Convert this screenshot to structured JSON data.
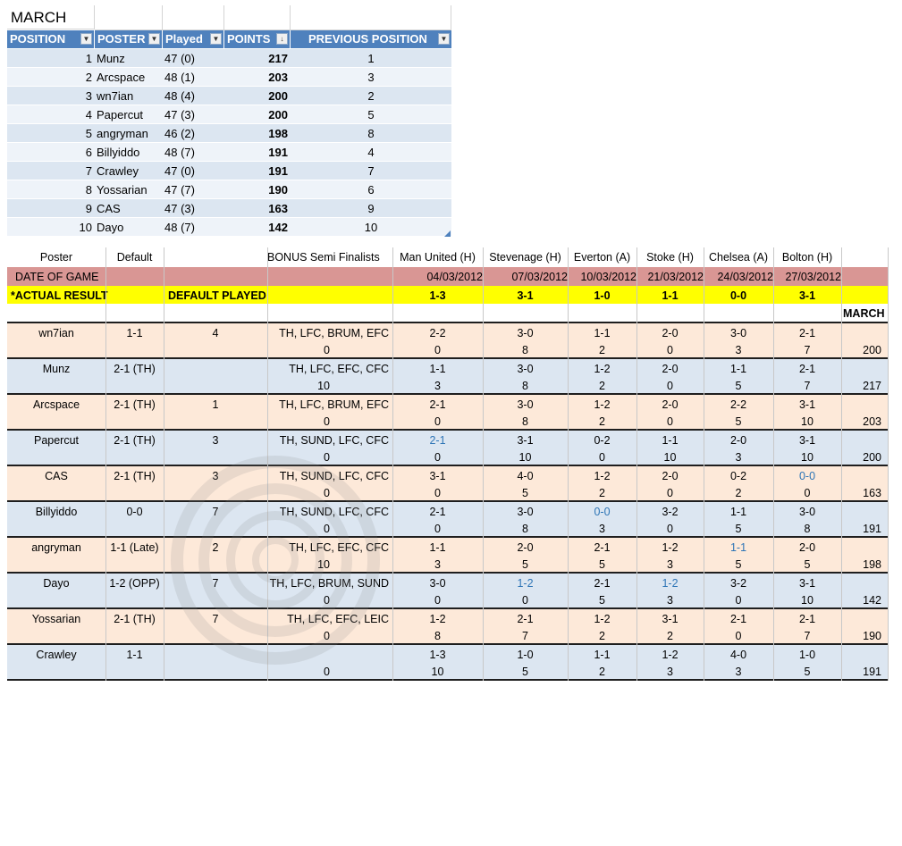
{
  "top_table": {
    "title": "MARCH",
    "headers": [
      "POSITION",
      "POSTER",
      "Played",
      "POINTS",
      "PREVIOUS POSITION"
    ],
    "rows": [
      {
        "position": "1",
        "poster": "Munz",
        "played": "47 (0)",
        "points": "217",
        "previous": "1"
      },
      {
        "position": "2",
        "poster": "Arcspace",
        "played": "48 (1)",
        "points": "203",
        "previous": "3"
      },
      {
        "position": "3",
        "poster": "wn7ian",
        "played": "48 (4)",
        "points": "200",
        "previous": "2"
      },
      {
        "position": "4",
        "poster": "Papercut",
        "played": "47 (3)",
        "points": "200",
        "previous": "5"
      },
      {
        "position": "5",
        "poster": "angryman",
        "played": "46 (2)",
        "points": "198",
        "previous": "8"
      },
      {
        "position": "6",
        "poster": "Billyiddo",
        "played": "48 (7)",
        "points": "191",
        "previous": "4"
      },
      {
        "position": "7",
        "poster": "Crawley",
        "played": "47 (0)",
        "points": "191",
        "previous": "7"
      },
      {
        "position": "8",
        "poster": "Yossarian",
        "played": "47 (7)",
        "points": "190",
        "previous": "6"
      },
      {
        "position": "9",
        "poster": "CAS",
        "played": "47 (3)",
        "points": "163",
        "previous": "9"
      },
      {
        "position": "10",
        "poster": "Dayo",
        "played": "48 (7)",
        "points": "142",
        "previous": "10"
      }
    ]
  },
  "bottom_table": {
    "headers": {
      "poster": "Poster",
      "default": "Default",
      "bonus": "BONUS Semi Finalists",
      "month": "MARCH"
    },
    "fixtures": [
      {
        "team": "Man United (H)",
        "date": "04/03/2012",
        "result": "1-3"
      },
      {
        "team": "Stevenage (H)",
        "date": "07/03/2012",
        "result": "3-1"
      },
      {
        "team": "Everton (A)",
        "date": "10/03/2012",
        "result": "1-0"
      },
      {
        "team": "Stoke (H)",
        "date": "21/03/2012",
        "result": "1-1"
      },
      {
        "team": "Chelsea (A)",
        "date": "24/03/2012",
        "result": "0-0"
      },
      {
        "team": "Bolton (H)",
        "date": "27/03/2012",
        "result": "3-1"
      }
    ],
    "date_label": "DATE OF GAME",
    "result_label": "*ACTUAL RESULT",
    "default_played_label": "DEFAULT PLAYED",
    "posters": [
      {
        "name": "wn7ian",
        "default": "1-1",
        "played": "4",
        "bonus": "TH, LFC, BRUM, EFC",
        "bonus_pts": "0",
        "preds": [
          "2-2",
          "3-0",
          "1-1",
          "2-0",
          "3-0",
          "2-1"
        ],
        "pts": [
          "0",
          "8",
          "2",
          "0",
          "3",
          "7"
        ],
        "total": "200",
        "blue": []
      },
      {
        "name": "Munz",
        "default": "2-1 (TH)",
        "played": "",
        "bonus": "TH, LFC, EFC, CFC",
        "bonus_pts": "10",
        "preds": [
          "1-1",
          "3-0",
          "1-2",
          "2-0",
          "1-1",
          "2-1"
        ],
        "pts": [
          "3",
          "8",
          "2",
          "0",
          "5",
          "7"
        ],
        "total": "217",
        "blue": []
      },
      {
        "name": "Arcspace",
        "default": "2-1 (TH)",
        "played": "1",
        "bonus": "TH, LFC, BRUM, EFC",
        "bonus_pts": "0",
        "preds": [
          "2-1",
          "3-0",
          "1-2",
          "2-0",
          "2-2",
          "3-1"
        ],
        "pts": [
          "0",
          "8",
          "2",
          "0",
          "5",
          "10"
        ],
        "total": "203",
        "blue": []
      },
      {
        "name": "Papercut",
        "default": "2-1 (TH)",
        "played": "3",
        "bonus": "TH, SUND, LFC, CFC",
        "bonus_pts": "0",
        "preds": [
          "2-1",
          "3-1",
          "0-2",
          "1-1",
          "2-0",
          "3-1"
        ],
        "pts": [
          "0",
          "10",
          "0",
          "10",
          "3",
          "10"
        ],
        "total": "200",
        "blue": [
          0
        ]
      },
      {
        "name": "CAS",
        "default": "2-1 (TH)",
        "played": "3",
        "bonus": "TH, SUND, LFC, CFC",
        "bonus_pts": "0",
        "preds": [
          "3-1",
          "4-0",
          "1-2",
          "2-0",
          "0-2",
          "0-0"
        ],
        "pts": [
          "0",
          "5",
          "2",
          "0",
          "2",
          "0"
        ],
        "total": "163",
        "blue": [
          5
        ]
      },
      {
        "name": "Billyiddo",
        "default": "0-0",
        "played": "7",
        "bonus": "TH, SUND, LFC, CFC",
        "bonus_pts": "0",
        "preds": [
          "2-1",
          "3-0",
          "0-0",
          "3-2",
          "1-1",
          "3-0"
        ],
        "pts": [
          "0",
          "8",
          "3",
          "0",
          "5",
          "8"
        ],
        "total": "191",
        "blue": [
          2
        ]
      },
      {
        "name": "angryman",
        "default": "1-1 (Late)",
        "played": "2",
        "bonus": "TH, LFC, EFC, CFC",
        "bonus_pts": "10",
        "preds": [
          "1-1",
          "2-0",
          "2-1",
          "1-2",
          "1-1",
          "2-0"
        ],
        "pts": [
          "3",
          "5",
          "5",
          "3",
          "5",
          "5"
        ],
        "total": "198",
        "blue": [
          4
        ]
      },
      {
        "name": "Dayo",
        "default": "1-2 (OPP)",
        "played": "7",
        "bonus": "TH, LFC, BRUM, SUND",
        "bonus_pts": "0",
        "preds": [
          "3-0",
          "1-2",
          "2-1",
          "1-2",
          "3-2",
          "3-1"
        ],
        "pts": [
          "0",
          "0",
          "5",
          "3",
          "0",
          "10"
        ],
        "total": "142",
        "blue": [
          1,
          3
        ]
      },
      {
        "name": "Yossarian",
        "default": "2-1 (TH)",
        "played": "7",
        "bonus": "TH, LFC, EFC, LEIC",
        "bonus_pts": "0",
        "preds": [
          "1-2",
          "2-1",
          "1-2",
          "3-1",
          "2-1",
          "2-1"
        ],
        "pts": [
          "8",
          "7",
          "2",
          "2",
          "0",
          "7"
        ],
        "total": "190",
        "blue": []
      },
      {
        "name": "Crawley",
        "default": "1-1",
        "played": "",
        "bonus": "",
        "bonus_pts": "0",
        "preds": [
          "1-3",
          "1-0",
          "1-1",
          "1-2",
          "4-0",
          "1-0"
        ],
        "pts": [
          "10",
          "5",
          "2",
          "3",
          "3",
          "5"
        ],
        "total": "191",
        "blue": []
      }
    ]
  },
  "colors": {
    "header_blue": "#4f81bd",
    "row_light_blue": "#dce6f1",
    "date_row": "#d99694",
    "result_row": "#ffff00",
    "peach": "#fde9d9",
    "pale_blue": "#dce6f1",
    "blue_text": "#2e75b6"
  }
}
